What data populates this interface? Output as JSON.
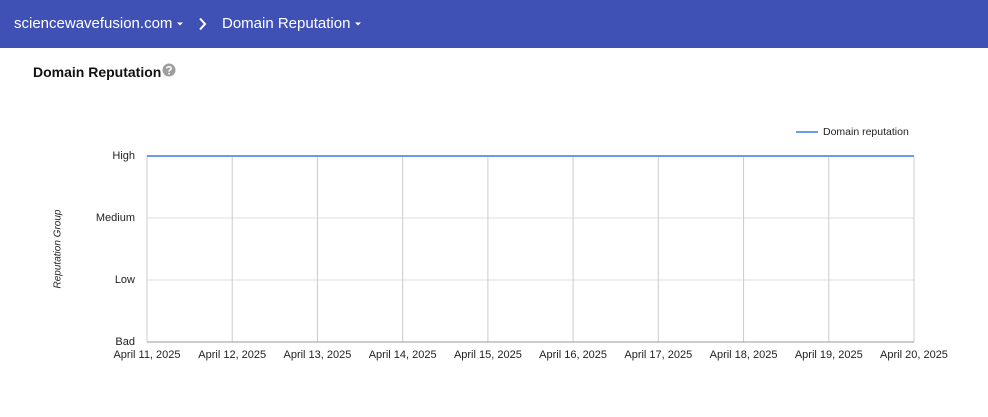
{
  "header": {
    "domain": "sciencewavefusion.com",
    "page": "Domain Reputation"
  },
  "section": {
    "title": "Domain Reputation"
  },
  "chart_data": {
    "type": "line",
    "ylabel": "Reputation Group",
    "x": [
      "April 11, 2025",
      "April 12, 2025",
      "April 13, 2025",
      "April 14, 2025",
      "April 15, 2025",
      "April 16, 2025",
      "April 17, 2025",
      "April 18, 2025",
      "April 19, 2025",
      "April 20, 2025"
    ],
    "series": [
      {
        "name": "Domain reputation",
        "color": "#6a9be6",
        "values": [
          3,
          3,
          3,
          3,
          3,
          3,
          3,
          3,
          3,
          3
        ]
      }
    ],
    "ylim": [
      0,
      3
    ],
    "yticks": [
      {
        "value": 0,
        "label": "Bad"
      },
      {
        "value": 1,
        "label": "Low"
      },
      {
        "value": 2,
        "label": "Medium"
      },
      {
        "value": 3,
        "label": "High"
      }
    ],
    "grid": true,
    "legend": "top-right"
  }
}
